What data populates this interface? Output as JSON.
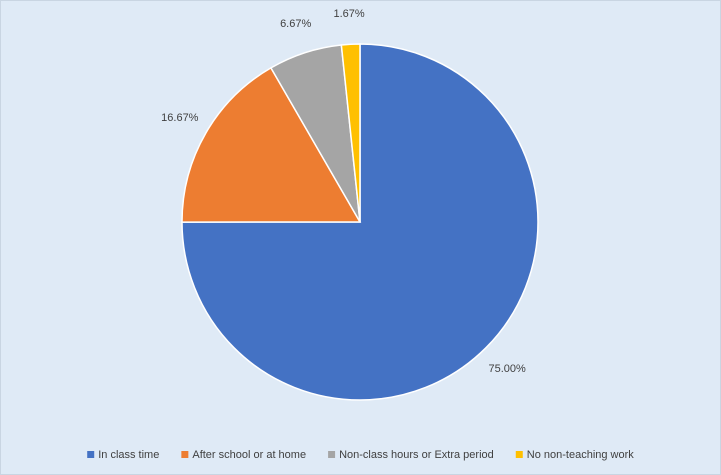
{
  "chart_data": {
    "type": "pie",
    "categories": [
      "In class time",
      "After school or at home",
      "Non-class hours or Extra period",
      "No non-teaching work"
    ],
    "values": [
      75,
      16.67,
      6.67,
      1.67
    ],
    "value_labels": [
      "75.00%",
      "16.67%",
      "6.67%",
      "1.67%"
    ],
    "colors": [
      "#4472c4",
      "#ed7d31",
      "#a5a5a5",
      "#ffc000"
    ],
    "legend": "bottom"
  }
}
